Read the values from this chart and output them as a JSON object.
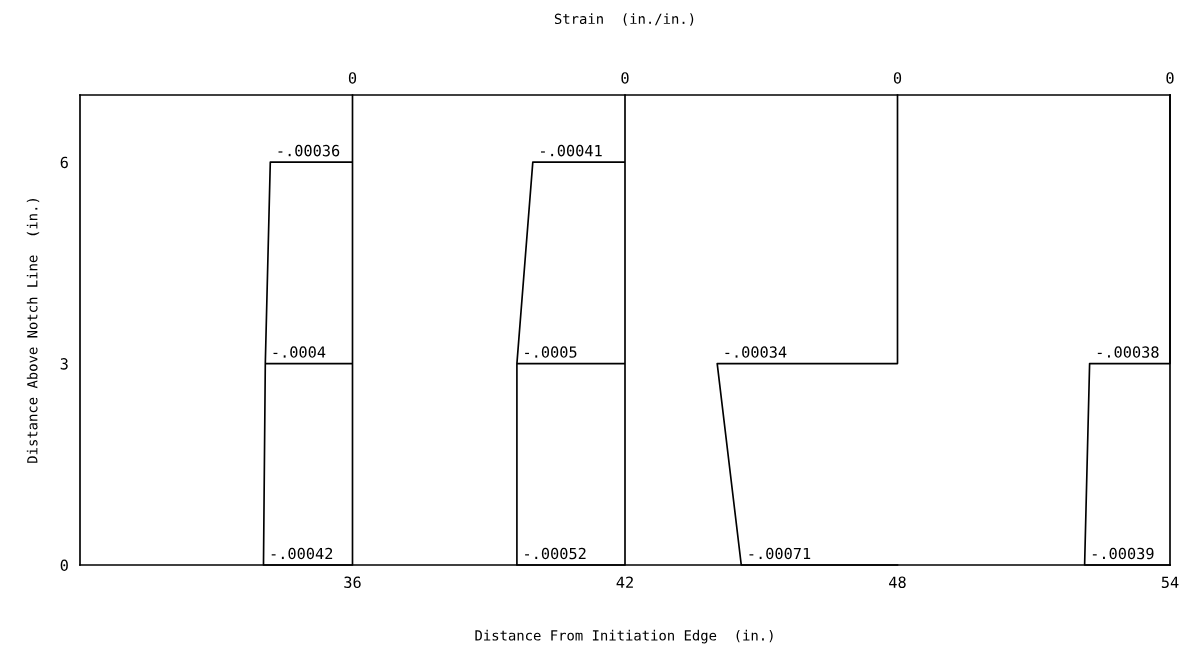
{
  "chart_data": {
    "type": "line",
    "x2label": "Strain  (in./in.)",
    "xlabel": "Distance From Initiation Edge  (in.)",
    "ylabel": "Distance Above Notch Line  (in.)",
    "xlim": [
      30,
      54
    ],
    "xticks": [
      36,
      42,
      48,
      54
    ],
    "ylim": [
      0,
      7
    ],
    "yticks": [
      0,
      3,
      6
    ],
    "grid": false,
    "marker": "none",
    "line_style": "solid",
    "series": [
      {
        "color": "#000000",
        "x": [
          36,
          36,
          34.19,
          34.08,
          36,
          36,
          36,
          36,
          34.04,
          34.08
        ],
        "values": [
          7,
          6,
          6,
          3,
          3,
          6,
          3,
          0,
          0,
          3
        ]
      },
      {
        "color": "#000000",
        "x": [
          42,
          42,
          39.97,
          39.62,
          42,
          42,
          42,
          42,
          39.62,
          39.62
        ],
        "values": [
          7,
          6,
          6,
          3,
          3,
          6,
          3,
          0,
          0,
          3
        ]
      },
      {
        "color": "#000000",
        "x": [
          48,
          48,
          44.03,
          44.56,
          48
        ],
        "values": [
          7,
          3,
          3,
          0,
          0
        ]
      },
      {
        "color": "#000000",
        "x": [
          54,
          54,
          52.23,
          52.12,
          54
        ],
        "values": [
          7,
          3,
          3,
          0,
          0
        ]
      }
    ],
    "annotations": [
      {
        "text": "0",
        "x": 36,
        "y": 7
      },
      {
        "text": "0",
        "x": 42,
        "y": 7
      },
      {
        "text": "0",
        "x": 48,
        "y": 7
      },
      {
        "text": "0",
        "x": 54,
        "y": 7
      },
      {
        "text": "-.00036",
        "x": 34.19,
        "y": 6
      },
      {
        "text": "-.0004",
        "x": 34.08,
        "y": 3
      },
      {
        "text": "-.00042",
        "x": 34.04,
        "y": 0
      },
      {
        "text": "-.00041",
        "x": 39.97,
        "y": 6
      },
      {
        "text": "-.0005",
        "x": 39.62,
        "y": 3
      },
      {
        "text": "-.00052",
        "x": 39.62,
        "y": 0
      },
      {
        "text": "-.00034",
        "x": 44.03,
        "y": 3
      },
      {
        "text": "-.00071",
        "x": 44.56,
        "y": 0
      },
      {
        "text": "-.00038",
        "x": 52.23,
        "y": 3
      },
      {
        "text": "-.00039",
        "x": 52.12,
        "y": 0
      }
    ]
  }
}
